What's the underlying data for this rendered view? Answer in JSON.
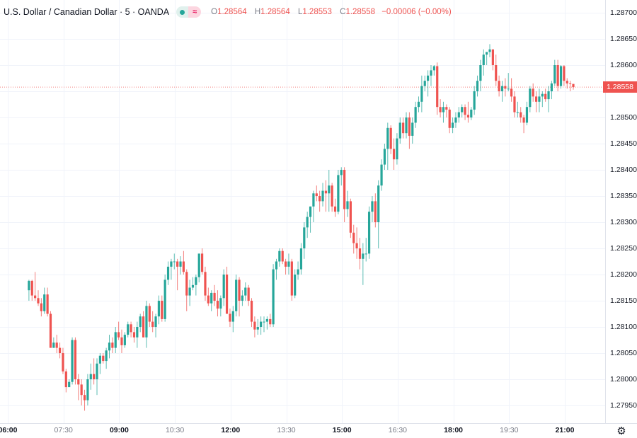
{
  "header": {
    "symbol_title": "U.S. Dollar / Canadian Dollar · 5 · OANDA",
    "market_status_icon": "green-dot-icon",
    "delayed_icon": "approx-icon",
    "approx_glyph": "≈",
    "ohlc": {
      "o_label": "O",
      "o_value": "1.28564",
      "h_label": "H",
      "h_value": "1.28564",
      "l_label": "L",
      "l_value": "1.28553",
      "c_label": "C",
      "c_value": "1.28558",
      "change": "−0.00006 (−0.00%)"
    }
  },
  "price_axis": {
    "ticks": [
      "1.28700",
      "1.28650",
      "1.28600",
      "1.28500",
      "1.28450",
      "1.28400",
      "1.28350",
      "1.28300",
      "1.28250",
      "1.28200",
      "1.28150",
      "1.28100",
      "1.28050",
      "1.28000",
      "1.27950"
    ],
    "last_price": "1.28558",
    "last_price_color": "#ef5350"
  },
  "time_axis": {
    "labels": [
      {
        "text": "06:00",
        "major": true
      },
      {
        "text": "07:30",
        "major": false
      },
      {
        "text": "09:00",
        "major": true
      },
      {
        "text": "10:30",
        "major": false
      },
      {
        "text": "12:00",
        "major": true
      },
      {
        "text": "13:30",
        "major": false
      },
      {
        "text": "15:00",
        "major": true
      },
      {
        "text": "16:30",
        "major": false
      },
      {
        "text": "18:00",
        "major": true
      },
      {
        "text": "19:30",
        "major": false
      },
      {
        "text": "21:00",
        "major": true
      }
    ],
    "settings_icon": "gear-icon"
  },
  "colors": {
    "up": "#26a69a",
    "down": "#ef5350",
    "grid": "#f0f3fa",
    "text": "#131722"
  },
  "chart_data": {
    "type": "candlestick",
    "title": "U.S. Dollar / Canadian Dollar · 5 · OANDA",
    "interval": "5m",
    "xlabel": "",
    "ylabel": "",
    "ylim": [
      1.2791,
      1.2872
    ],
    "x_ticks": [
      "06:00",
      "07:30",
      "09:00",
      "10:30",
      "12:00",
      "13:30",
      "15:00",
      "16:30",
      "18:00",
      "19:30",
      "21:00"
    ],
    "y_ticks": [
      1.287,
      1.2865,
      1.286,
      1.2855,
      1.285,
      1.2845,
      1.284,
      1.2835,
      1.283,
      1.2825,
      1.282,
      1.2815,
      1.281,
      1.2805,
      1.28,
      1.2795
    ],
    "last_close": 1.28558,
    "ohlc": [
      [
        1.2817,
        1.2819,
        1.2815,
        1.28188
      ],
      [
        1.28188,
        1.2819,
        1.2815,
        1.2816
      ],
      [
        1.2816,
        1.28205,
        1.2815,
        1.28155
      ],
      [
        1.28155,
        1.2817,
        1.2814,
        1.28145
      ],
      [
        1.28145,
        1.28155,
        1.2812,
        1.2813
      ],
      [
        1.2813,
        1.28175,
        1.28125,
        1.28162
      ],
      [
        1.28162,
        1.28175,
        1.2812,
        1.28125
      ],
      [
        1.28125,
        1.2813,
        1.28065,
        1.2806
      ],
      [
        1.2806,
        1.2808,
        1.2806,
        1.2807
      ],
      [
        1.2807,
        1.28085,
        1.2805,
        1.2806
      ],
      [
        1.2806,
        1.2807,
        1.2804,
        1.2805
      ],
      [
        1.2805,
        1.2806,
        1.2801,
        1.28015
      ],
      [
        1.28015,
        1.2802,
        1.27975,
        1.27985
      ],
      [
        1.27985,
        1.28,
        1.2799,
        1.27995
      ],
      [
        1.27995,
        1.2808,
        1.2799,
        1.28075
      ],
      [
        1.28075,
        1.2808,
        1.2799,
        1.28
      ],
      [
        1.28,
        1.2801,
        1.2796,
        1.2799
      ],
      [
        1.2799,
        1.28,
        1.2795,
        1.2797
      ],
      [
        1.2797,
        1.2798,
        1.2794,
        1.2796
      ],
      [
        1.2796,
        1.2801,
        1.2795,
        1.28
      ],
      [
        1.28,
        1.2803,
        1.2798,
        1.2801
      ],
      [
        1.2801,
        1.2804,
        1.2799,
        1.28
      ],
      [
        1.28,
        1.2804,
        1.2797,
        1.2803
      ],
      [
        1.2803,
        1.2805,
        1.2801,
        1.28045
      ],
      [
        1.28045,
        1.2805,
        1.2803,
        1.28035
      ],
      [
        1.28035,
        1.2806,
        1.2802,
        1.28055
      ],
      [
        1.28055,
        1.28085,
        1.2804,
        1.2807
      ],
      [
        1.2807,
        1.2808,
        1.2805,
        1.2806
      ],
      [
        1.2806,
        1.281,
        1.2805,
        1.2809
      ],
      [
        1.2809,
        1.2811,
        1.28075,
        1.2808
      ],
      [
        1.2808,
        1.28095,
        1.2805,
        1.28065
      ],
      [
        1.28065,
        1.2809,
        1.2806,
        1.28085
      ],
      [
        1.28085,
        1.2811,
        1.2808,
        1.28105
      ],
      [
        1.28105,
        1.2811,
        1.2808,
        1.2809
      ],
      [
        1.2809,
        1.281,
        1.2807,
        1.2808
      ],
      [
        1.2808,
        1.2811,
        1.2806,
        1.281
      ],
      [
        1.281,
        1.28125,
        1.2809,
        1.2812
      ],
      [
        1.2812,
        1.2813,
        1.2808,
        1.2808
      ],
      [
        1.2808,
        1.2815,
        1.2806,
        1.2814
      ],
      [
        1.2814,
        1.28145,
        1.281,
        1.2811
      ],
      [
        1.2811,
        1.2813,
        1.2809,
        1.281
      ],
      [
        1.281,
        1.28125,
        1.2808,
        1.2812
      ],
      [
        1.2812,
        1.2816,
        1.28105,
        1.2815
      ],
      [
        1.2815,
        1.2816,
        1.2811,
        1.28115
      ],
      [
        1.28115,
        1.282,
        1.2811,
        1.2819
      ],
      [
        1.2819,
        1.28225,
        1.2818,
        1.28215
      ],
      [
        1.28215,
        1.2823,
        1.2819,
        1.28225
      ],
      [
        1.28225,
        1.2824,
        1.2821,
        1.28225
      ],
      [
        1.28225,
        1.2823,
        1.2817,
        1.28215
      ],
      [
        1.28215,
        1.28235,
        1.282,
        1.28225
      ],
      [
        1.28225,
        1.28245,
        1.282,
        1.28205
      ],
      [
        1.28205,
        1.2821,
        1.2813,
        1.2816
      ],
      [
        1.2816,
        1.2819,
        1.2814,
        1.28175
      ],
      [
        1.28175,
        1.28195,
        1.2817,
        1.2818
      ],
      [
        1.2818,
        1.282,
        1.2816,
        1.28195
      ],
      [
        1.28195,
        1.2824,
        1.28185,
        1.2824
      ],
      [
        1.2824,
        1.2825,
        1.282,
        1.28205
      ],
      [
        1.28205,
        1.28215,
        1.2815,
        1.2816
      ],
      [
        1.2816,
        1.28175,
        1.2814,
        1.28145
      ],
      [
        1.28145,
        1.2817,
        1.2813,
        1.28165
      ],
      [
        1.28165,
        1.2818,
        1.2814,
        1.2815
      ],
      [
        1.2815,
        1.2817,
        1.2812,
        1.28135
      ],
      [
        1.28135,
        1.2816,
        1.2812,
        1.28155
      ],
      [
        1.28155,
        1.2821,
        1.2814,
        1.282
      ],
      [
        1.282,
        1.28215,
        1.2813,
        1.28125
      ],
      [
        1.28125,
        1.28135,
        1.281,
        1.2811
      ],
      [
        1.2811,
        1.2814,
        1.2809,
        1.2813
      ],
      [
        1.2813,
        1.282,
        1.2812,
        1.2819
      ],
      [
        1.2819,
        1.28195,
        1.2812,
        1.2815
      ],
      [
        1.2815,
        1.2817,
        1.2814,
        1.2816
      ],
      [
        1.2816,
        1.28185,
        1.2815,
        1.28175
      ],
      [
        1.28175,
        1.2818,
        1.2814,
        1.2815
      ],
      [
        1.2815,
        1.28155,
        1.281,
        1.2811
      ],
      [
        1.2811,
        1.2812,
        1.2808,
        1.28095
      ],
      [
        1.28095,
        1.28115,
        1.28085,
        1.281
      ],
      [
        1.281,
        1.2812,
        1.28085,
        1.2811
      ],
      [
        1.2811,
        1.2812,
        1.2809,
        1.2811
      ],
      [
        1.2811,
        1.2812,
        1.28095,
        1.28115
      ],
      [
        1.28115,
        1.28125,
        1.281,
        1.28105
      ],
      [
        1.28105,
        1.2822,
        1.281,
        1.2821
      ],
      [
        1.2821,
        1.2823,
        1.2819,
        1.28225
      ],
      [
        1.28225,
        1.2825,
        1.28215,
        1.28245
      ],
      [
        1.28245,
        1.2825,
        1.2822,
        1.28225
      ],
      [
        1.28225,
        1.2823,
        1.282,
        1.28215
      ],
      [
        1.28215,
        1.2824,
        1.282,
        1.28225
      ],
      [
        1.28225,
        1.2823,
        1.2815,
        1.2816
      ],
      [
        1.2816,
        1.2821,
        1.28155,
        1.282
      ],
      [
        1.282,
        1.28225,
        1.2819,
        1.2821
      ],
      [
        1.2821,
        1.2826,
        1.282,
        1.2825
      ],
      [
        1.2825,
        1.283,
        1.2823,
        1.2829
      ],
      [
        1.2829,
        1.2832,
        1.2827,
        1.2831
      ],
      [
        1.2831,
        1.2833,
        1.2828,
        1.2833
      ],
      [
        1.2833,
        1.2836,
        1.283,
        1.28355
      ],
      [
        1.28355,
        1.2837,
        1.2834,
        1.2835
      ],
      [
        1.2835,
        1.2836,
        1.2832,
        1.2834
      ],
      [
        1.2834,
        1.28375,
        1.2833,
        1.2836
      ],
      [
        1.2836,
        1.2838,
        1.2832,
        1.28355
      ],
      [
        1.28355,
        1.284,
        1.2832,
        1.2837
      ],
      [
        1.2837,
        1.28375,
        1.2832,
        1.2833
      ],
      [
        1.2833,
        1.28345,
        1.2831,
        1.2832
      ],
      [
        1.2832,
        1.284,
        1.28315,
        1.2839
      ],
      [
        1.2839,
        1.28405,
        1.2837,
        1.284
      ],
      [
        1.284,
        1.28405,
        1.283,
        1.28325
      ],
      [
        1.28325,
        1.2836,
        1.2831,
        1.2834
      ],
      [
        1.2834,
        1.28345,
        1.2827,
        1.2828
      ],
      [
        1.2828,
        1.28295,
        1.2824,
        1.2826
      ],
      [
        1.2826,
        1.2829,
        1.2823,
        1.2825
      ],
      [
        1.2825,
        1.2827,
        1.2821,
        1.2823
      ],
      [
        1.2823,
        1.2826,
        1.2818,
        1.2824
      ],
      [
        1.2824,
        1.2827,
        1.28225,
        1.2824
      ],
      [
        1.2824,
        1.2833,
        1.2823,
        1.2832
      ],
      [
        1.2832,
        1.2835,
        1.283,
        1.2834
      ],
      [
        1.2834,
        1.28355,
        1.2829,
        1.283
      ],
      [
        1.283,
        1.2838,
        1.2825,
        1.2837
      ],
      [
        1.2837,
        1.2842,
        1.2836,
        1.2841
      ],
      [
        1.2841,
        1.2845,
        1.284,
        1.2844
      ],
      [
        1.2844,
        1.2849,
        1.284,
        1.2848
      ],
      [
        1.2848,
        1.28485,
        1.2843,
        1.2844
      ],
      [
        1.2844,
        1.2846,
        1.284,
        1.2842
      ],
      [
        1.2842,
        1.2847,
        1.2841,
        1.2846
      ],
      [
        1.2846,
        1.285,
        1.2845,
        1.2849
      ],
      [
        1.2849,
        1.285,
        1.2846,
        1.2847
      ],
      [
        1.2847,
        1.2851,
        1.2846,
        1.285
      ],
      [
        1.285,
        1.2851,
        1.2844,
        1.28465
      ],
      [
        1.28465,
        1.285,
        1.2845,
        1.2849
      ],
      [
        1.2849,
        1.2853,
        1.2848,
        1.2852
      ],
      [
        1.2852,
        1.2854,
        1.2851,
        1.2853
      ],
      [
        1.2853,
        1.2858,
        1.2851,
        1.2856
      ],
      [
        1.2856,
        1.2858,
        1.2855,
        1.2857
      ],
      [
        1.2857,
        1.2859,
        1.2854,
        1.2858
      ],
      [
        1.2858,
        1.286,
        1.2856,
        1.2859
      ],
      [
        1.2859,
        1.286,
        1.2858,
        1.28598
      ],
      [
        1.28598,
        1.28605,
        1.28505,
        1.2852
      ],
      [
        1.2852,
        1.28535,
        1.285,
        1.2851
      ],
      [
        1.2851,
        1.2853,
        1.2849,
        1.2852
      ],
      [
        1.2852,
        1.28525,
        1.285,
        1.28515
      ],
      [
        1.28515,
        1.2852,
        1.2847,
        1.2848
      ],
      [
        1.2848,
        1.285,
        1.2847,
        1.2849
      ],
      [
        1.2849,
        1.2851,
        1.2848,
        1.285
      ],
      [
        1.285,
        1.2852,
        1.2849,
        1.2851
      ],
      [
        1.2851,
        1.28525,
        1.285,
        1.2852
      ],
      [
        1.2852,
        1.28525,
        1.28495,
        1.28505
      ],
      [
        1.28505,
        1.2853,
        1.2849,
        1.285
      ],
      [
        1.285,
        1.2852,
        1.28495,
        1.28515
      ],
      [
        1.28515,
        1.2856,
        1.28505,
        1.2855
      ],
      [
        1.2855,
        1.2858,
        1.2854,
        1.2857
      ],
      [
        1.2857,
        1.2861,
        1.2855,
        1.286
      ],
      [
        1.286,
        1.2863,
        1.2858,
        1.2862
      ],
      [
        1.2862,
        1.28625,
        1.286,
        1.28625
      ],
      [
        1.28625,
        1.2864,
        1.28615,
        1.2863
      ],
      [
        1.2863,
        1.2863,
        1.2859,
        1.286
      ],
      [
        1.286,
        1.2862,
        1.2856,
        1.2857
      ],
      [
        1.2857,
        1.2858,
        1.2854,
        1.2855
      ],
      [
        1.2855,
        1.2857,
        1.2853,
        1.2856
      ],
      [
        1.2856,
        1.28575,
        1.2854,
        1.28555
      ],
      [
        1.28555,
        1.28585,
        1.2855,
        1.28555
      ],
      [
        1.28555,
        1.28575,
        1.2853,
        1.2854
      ],
      [
        1.2854,
        1.2855,
        1.285,
        1.2851
      ],
      [
        1.2851,
        1.2853,
        1.285,
        1.2851
      ],
      [
        1.2851,
        1.2852,
        1.2849,
        1.285
      ],
      [
        1.285,
        1.28505,
        1.2847,
        1.2849
      ],
      [
        1.2849,
        1.2853,
        1.28485,
        1.2852
      ],
      [
        1.2852,
        1.2856,
        1.2851,
        1.28555
      ],
      [
        1.28555,
        1.28565,
        1.2853,
        1.2854
      ],
      [
        1.2854,
        1.2855,
        1.2851,
        1.2853
      ],
      [
        1.2853,
        1.28555,
        1.2851,
        1.2854
      ],
      [
        1.2854,
        1.2855,
        1.2852,
        1.28545
      ],
      [
        1.28545,
        1.28555,
        1.2853,
        1.28535
      ],
      [
        1.28535,
        1.2856,
        1.2851,
        1.2855
      ],
      [
        1.2855,
        1.2857,
        1.28535,
        1.28565
      ],
      [
        1.28565,
        1.2861,
        1.2856,
        1.286
      ],
      [
        1.286,
        1.2861,
        1.2855,
        1.2856
      ],
      [
        1.2856,
        1.286,
        1.28555,
        1.28598
      ],
      [
        1.28598,
        1.286,
        1.2856,
        1.2857
      ],
      [
        1.2857,
        1.28575,
        1.28555,
        1.28565
      ],
      [
        1.28565,
        1.2857,
        1.2855,
        1.28564
      ],
      [
        1.28564,
        1.28564,
        1.28553,
        1.28558
      ]
    ]
  }
}
